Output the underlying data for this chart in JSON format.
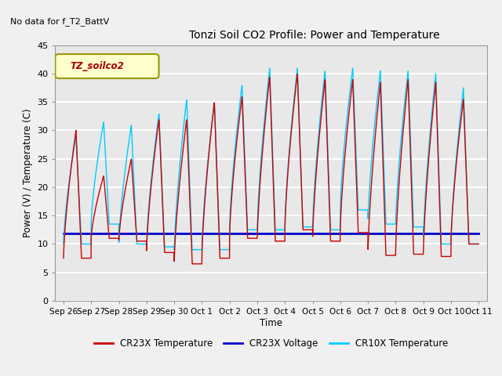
{
  "title": "Tonzi Soil CO2 Profile: Power and Temperature",
  "no_data_text": "No data for f_T2_BattV",
  "ylabel": "Power (V) / Temperature (C)",
  "xlabel": "Time",
  "ylim": [
    0,
    45
  ],
  "yticks": [
    0,
    5,
    10,
    15,
    20,
    25,
    30,
    35,
    40,
    45
  ],
  "fig_bg_color": "#d0d0d0",
  "plot_bg_color": "#e8e8e8",
  "grid_color": "#ffffff",
  "legend_label_box": "TZ_soilco2",
  "legend_box_facecolor": "#ffffcc",
  "legend_box_edgecolor": "#999900",
  "cr23x_temp_color": "#cc0000",
  "cr23x_volt_color": "#0000cc",
  "cr10x_temp_color": "#00ccff",
  "voltage_value": 11.8,
  "xtick_labels": [
    "Sep 26",
    "Sep 27",
    "Sep 28",
    "Sep 29",
    "Sep 30",
    "Oct 1",
    "Oct 2",
    "Oct 3",
    "Oct 4",
    "Oct 5",
    "Oct 6",
    "Oct 7",
    "Oct 8",
    "Oct 9",
    "Oct 10",
    "Oct 11"
  ],
  "cr23x_peaks": [
    30,
    22,
    25,
    32,
    32,
    35,
    36,
    39.5,
    40,
    39,
    39,
    38.5,
    39,
    38.5,
    35.5,
    10
  ],
  "cr23x_mins": [
    7.5,
    11,
    10.5,
    8.5,
    6.5,
    7.5,
    11.0,
    10.5,
    12.5,
    10.5,
    12,
    8.0,
    8.2,
    7.8,
    10,
    10
  ],
  "cr10x_peaks": [
    29,
    31.5,
    31,
    33,
    35.5,
    35,
    38,
    41,
    41,
    40.5,
    41,
    40.5,
    40.5,
    40,
    37.5,
    10
  ],
  "cr10x_mins": [
    10,
    13.5,
    10,
    9.5,
    8.5,
    9,
    12.5,
    12.5,
    13,
    12.5,
    16,
    13.5,
    13,
    10,
    10,
    10
  ]
}
